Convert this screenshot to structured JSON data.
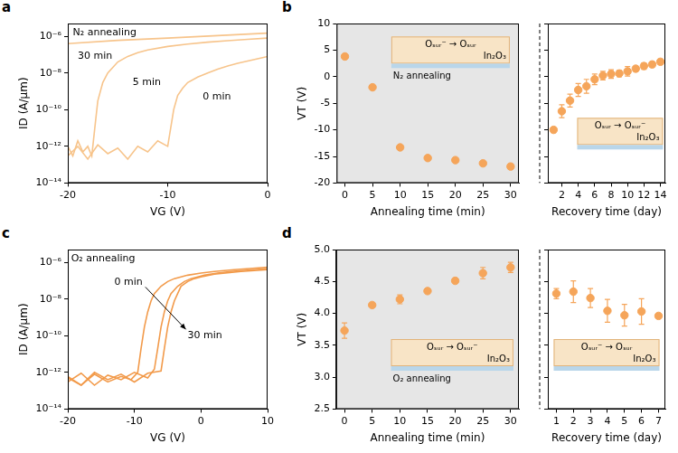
{
  "chart_data": [
    {
      "panel": "a",
      "type": "line",
      "x_label": "VG (V)",
      "y_label": "ID (A/μm)",
      "log": "y",
      "grid": false,
      "tick_labels": true,
      "xlim": [
        -20,
        0
      ],
      "xticks": [
        -20,
        -10,
        0
      ],
      "ylim": [
        1e-14,
        5e-06
      ],
      "yticks": [
        {
          "value": 1e-14,
          "label": "10⁻¹⁴"
        },
        {
          "value": 1e-12,
          "label": "10⁻¹²"
        },
        {
          "value": 1e-10,
          "label": "10⁻¹⁰"
        },
        {
          "value": 1e-08,
          "label": "10⁻⁸"
        },
        {
          "value": 1e-06,
          "label": "10⁻⁶"
        }
      ],
      "series": [
        {
          "color": "#f7c48b",
          "line_style": "solid",
          "x": [
            -20,
            -19,
            -18,
            -17,
            -16,
            -15,
            -14,
            -13,
            -12,
            -11,
            -10,
            -9.7,
            -9.4,
            -9,
            -8.5,
            -8,
            -7,
            -6,
            -5,
            -4,
            -3,
            -2,
            -1,
            0
          ],
          "values": [
            3e-13,
            1e-12,
            2e-13,
            1.2e-12,
            4e-13,
            8e-13,
            2e-13,
            1e-12,
            5e-13,
            2e-12,
            1e-12,
            1e-11,
            1e-10,
            6e-10,
            1.5e-09,
            3e-09,
            6e-09,
            1e-08,
            1.6e-08,
            2.4e-08,
            3.4e-08,
            4.5e-08,
            6e-08,
            8e-08
          ]
        },
        {
          "color": "#f7c48b",
          "line_style": "solid",
          "x": [
            -20,
            -19.5,
            -19,
            -18.5,
            -18,
            -17.6,
            -17.3,
            -17,
            -16.5,
            -16,
            -15,
            -14,
            -13,
            -12,
            -10,
            -8,
            -6,
            -4,
            -2,
            0
          ],
          "values": [
            1e-12,
            3e-13,
            2e-12,
            5e-13,
            1e-12,
            3e-13,
            1e-11,
            3e-10,
            3e-09,
            1e-08,
            4e-08,
            8e-08,
            1.3e-07,
            1.8e-07,
            2.8e-07,
            3.8e-07,
            4.8e-07,
            5.8e-07,
            6.8e-07,
            8e-07
          ]
        },
        {
          "color": "#f7c48b",
          "line_style": "solid",
          "x": [
            -20,
            -15,
            -10,
            -5,
            0
          ],
          "values": [
            4e-07,
            6e-07,
            8e-07,
            1.1e-06,
            1.5e-06
          ]
        }
      ],
      "annotations": [
        {
          "text": "N₂ annealing",
          "x": -19.5,
          "y": 1.5e-06
        },
        {
          "text": "30 min",
          "x": -19,
          "y": 8e-08
        },
        {
          "text": "5 min",
          "x": -13.5,
          "y": 3e-09
        },
        {
          "text": "0 min",
          "x": -6.5,
          "y": 5e-10
        }
      ]
    },
    {
      "panel": "b",
      "type": "scatter",
      "x_label": "Annealing time (min)",
      "y_label": "VT (V)",
      "grid": false,
      "tick_labels": true,
      "xlim": [
        -1.5,
        31.5
      ],
      "xticks": [
        0,
        5,
        10,
        15,
        20,
        25,
        30
      ],
      "ylim": [
        -20,
        10
      ],
      "yticks": [
        -20,
        -15,
        -10,
        -5,
        0,
        5,
        10
      ],
      "series": [
        {
          "color": "#f5a55a",
          "marker": "circle",
          "x": [
            0,
            5,
            10,
            15,
            20,
            25,
            30
          ],
          "values": [
            3.8,
            -2,
            -13.3,
            -15.3,
            -15.7,
            -16.3,
            -16.9
          ],
          "errors": [
            0.3,
            0.3,
            0.4,
            0.3,
            0.3,
            0.4,
            0.5
          ]
        }
      ],
      "inset": {
        "reaction": "Oₛᵤᵣ⁻ → Oₛᵤᵣ",
        "material": "In₂O₃",
        "label": "N₂ annealing"
      }
    },
    {
      "type": "scatter",
      "x_label": "Recovery time (day)",
      "grid": false,
      "tick_labels": "x",
      "xlim": [
        0.3,
        14.6
      ],
      "xticks": [
        2,
        4,
        6,
        8,
        10,
        12,
        14
      ],
      "ylim": [
        -20,
        10
      ],
      "yticks": [
        -20,
        -15,
        -10,
        -5,
        0,
        5,
        10
      ],
      "series": [
        {
          "color": "#f5a55a",
          "marker": "circle",
          "x": [
            1,
            2,
            3,
            4,
            5,
            6,
            7,
            8,
            9,
            10,
            11,
            12,
            13,
            14
          ],
          "values": [
            -10,
            -6.5,
            -4.5,
            -2.5,
            -1.8,
            -0.5,
            0.2,
            0.5,
            0.6,
            1.0,
            1.5,
            2.0,
            2.3,
            2.8
          ],
          "errors": [
            0.5,
            1.2,
            1.2,
            1.2,
            1.3,
            1.0,
            0.8,
            0.8,
            0.6,
            0.9,
            0.5,
            0.6,
            0.5,
            0.5
          ]
        }
      ],
      "inset": {
        "reaction": "Oₛᵤᵣ → Oₛᵤᵣ⁻",
        "material": "In₂O₃"
      }
    },
    {
      "panel": "c",
      "type": "line",
      "x_label": "VG (V)",
      "y_label": "ID (A/μm)",
      "log": "y",
      "grid": false,
      "tick_labels": true,
      "xlim": [
        -20,
        10
      ],
      "xticks": [
        -20,
        -10,
        0,
        10
      ],
      "ylim": [
        1e-14,
        5e-06
      ],
      "yticks": [
        {
          "value": 1e-14,
          "label": "10⁻¹⁴"
        },
        {
          "value": 1e-12,
          "label": "10⁻¹²"
        },
        {
          "value": 1e-10,
          "label": "10⁻¹⁰"
        },
        {
          "value": 1e-08,
          "label": "10⁻⁸"
        },
        {
          "value": 1e-06,
          "label": "10⁻⁶"
        }
      ],
      "series": [
        {
          "color": "#f29a4a",
          "line_style": "solid",
          "x": [
            -20,
            -18,
            -16,
            -14,
            -12,
            -10.5,
            -9.5,
            -9,
            -8.5,
            -8,
            -7.5,
            -7,
            -6,
            -5,
            -4,
            -2,
            0,
            2,
            5,
            10
          ],
          "values": [
            5e-13,
            2e-13,
            8e-13,
            3e-13,
            6e-13,
            4e-13,
            1e-12,
            2e-11,
            3e-10,
            2e-09,
            8e-09,
            2e-08,
            5e-08,
            9e-08,
            1.3e-07,
            2e-07,
            2.6e-07,
            3.2e-07,
            4e-07,
            5.5e-07
          ]
        },
        {
          "color": "#f29a4a",
          "line_style": "solid",
          "x": [
            -20,
            -18,
            -16,
            -14,
            -12,
            -10,
            -8,
            -7,
            -6.5,
            -6,
            -5.5,
            -5,
            -4.5,
            -3.5,
            -2.5,
            -1.5,
            0.5,
            2.5,
            4.5,
            10
          ],
          "values": [
            3e-13,
            9e-13,
            2e-13,
            7e-13,
            4e-13,
            1e-12,
            5e-13,
            1.5e-12,
            2e-11,
            3e-10,
            2e-09,
            8e-09,
            2e-08,
            5e-08,
            9e-08,
            1.3e-07,
            2e-07,
            2.6e-07,
            3.2e-07,
            4.6e-07
          ]
        },
        {
          "color": "#f29a4a",
          "line_style": "solid",
          "x": [
            -20,
            -18,
            -16,
            -14,
            -12,
            -10,
            -8,
            -6,
            -5.5,
            -5,
            -4.5,
            -4,
            -3.5,
            -3,
            -2,
            -1,
            0,
            2,
            6,
            10
          ],
          "values": [
            6e-13,
            2e-13,
            1e-12,
            4e-13,
            8e-13,
            3e-13,
            9e-13,
            1.2e-12,
            2e-11,
            3e-10,
            2e-09,
            8e-09,
            2e-08,
            5e-08,
            9e-08,
            1.3e-07,
            1.6e-07,
            2.3e-07,
            3.2e-07,
            4e-07
          ]
        }
      ],
      "annotations": [
        {
          "text": "O₂ annealing",
          "x": -19.5,
          "y": 1.5e-06
        },
        {
          "text": "0 min",
          "x": -13,
          "y": 8e-08
        },
        {
          "text": "30 min",
          "x": -2,
          "y": 1e-10
        }
      ]
    },
    {
      "panel": "d",
      "type": "scatter",
      "x_label": "Annealing time (min)",
      "y_label": "VT (V)",
      "grid": false,
      "tick_labels": true,
      "xlim": [
        -1.5,
        31.5
      ],
      "xticks": [
        0,
        5,
        10,
        15,
        20,
        25,
        30
      ],
      "ylim": [
        2.5,
        5
      ],
      "yticks": [
        2.5,
        {
          "value": 3,
          "label": "3.0"
        },
        3.5,
        {
          "value": 4,
          "label": "4.0"
        },
        4.5,
        {
          "value": 5,
          "label": "5.0"
        }
      ],
      "series": [
        {
          "color": "#f5a55a",
          "marker": "circle",
          "x": [
            0,
            5,
            10,
            15,
            20,
            25,
            30
          ],
          "values": [
            3.73,
            4.13,
            4.22,
            4.35,
            4.51,
            4.63,
            4.72
          ],
          "errors": [
            0.12,
            0.03,
            0.07,
            0.03,
            0.03,
            0.09,
            0.08
          ]
        }
      ],
      "inset": {
        "reaction": "Oₛᵤᵣ → Oₛᵤᵣ⁻",
        "material": "In₂O₃",
        "label": "O₂ annealing"
      }
    },
    {
      "type": "scatter",
      "x_label": "Recovery time (day)",
      "grid": false,
      "tick_labels": "x",
      "xlim": [
        0.5,
        7.4
      ],
      "xticks": [
        1,
        2,
        3,
        4,
        5,
        6,
        7
      ],
      "ylim": [
        2.5,
        5
      ],
      "yticks": [
        2.5,
        {
          "value": 3,
          "label": "3.0"
        },
        3.5,
        {
          "value": 4,
          "label": "4.0"
        },
        4.5,
        {
          "value": 5,
          "label": "5.0"
        }
      ],
      "series": [
        {
          "color": "#f5a55a",
          "marker": "circle",
          "x": [
            1,
            2,
            3,
            4,
            5,
            6,
            7
          ],
          "values": [
            4.31,
            4.34,
            4.24,
            4.04,
            3.97,
            4.03,
            3.96
          ],
          "errors": [
            0.08,
            0.17,
            0.15,
            0.18,
            0.17,
            0.2,
            0.04
          ]
        }
      ],
      "inset": {
        "reaction": "Oₛᵤᵣ⁻ → Oₛᵤᵣ",
        "material": "In₂O₃"
      }
    }
  ]
}
